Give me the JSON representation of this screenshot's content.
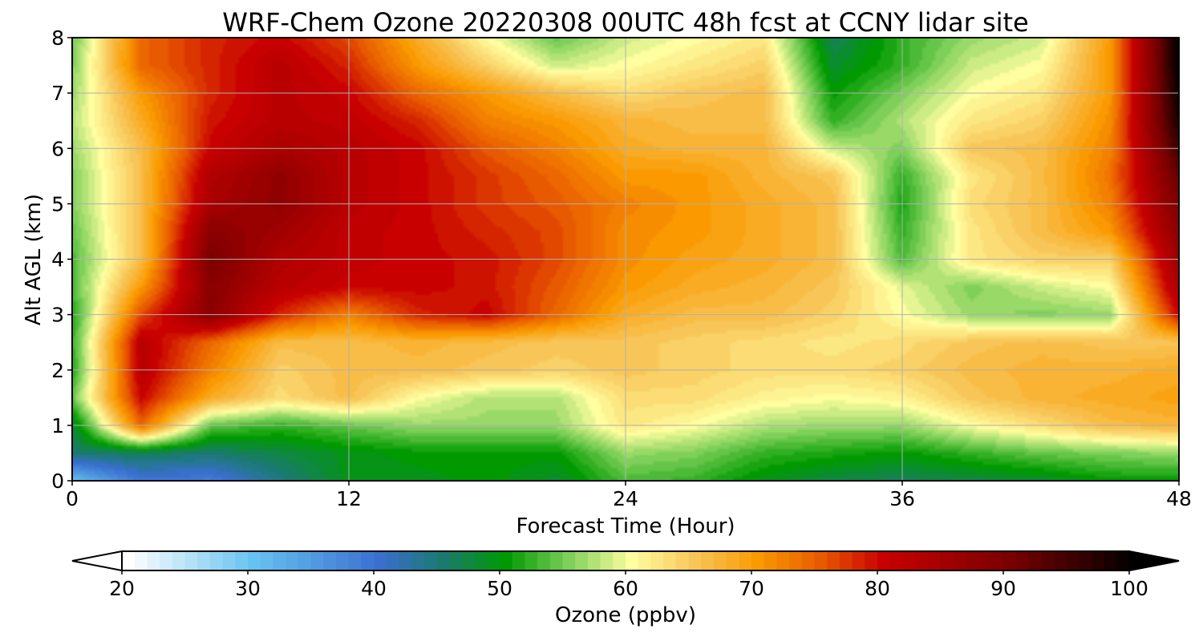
{
  "chart_data": {
    "type": "heatmap",
    "title": "WRF-Chem Ozone  20220308 00UTC 48h fcst at CCNY lidar site",
    "xlabel": "Forecast Time (Hour)",
    "ylabel": "Alt AGL (km)",
    "xlim": [
      0,
      48
    ],
    "ylim": [
      0,
      8
    ],
    "xticks": [
      0,
      12,
      24,
      36,
      48
    ],
    "xtick_labels": [
      "0",
      "12",
      "24",
      "36",
      "48"
    ],
    "yticks": [
      0,
      1,
      2,
      3,
      4,
      5,
      6,
      7,
      8
    ],
    "ytick_labels": [
      "0",
      "1",
      "2",
      "3",
      "4",
      "5",
      "6",
      "7",
      "8"
    ],
    "grid": true,
    "colorbar": {
      "label": "Ozone  (ppbv)",
      "range": [
        20,
        100
      ],
      "ticks": [
        20,
        30,
        40,
        50,
        60,
        70,
        80,
        90,
        100
      ],
      "tick_labels": [
        "20",
        "30",
        "40",
        "50",
        "60",
        "70",
        "80",
        "90",
        "100"
      ],
      "extend": "both",
      "orientation": "horizontal",
      "stops": [
        {
          "v": 20,
          "color": "#ffffff"
        },
        {
          "v": 30,
          "color": "#66c2f0"
        },
        {
          "v": 40,
          "color": "#3a6fd0"
        },
        {
          "v": 45,
          "color": "#1a7a70"
        },
        {
          "v": 50,
          "color": "#009a00"
        },
        {
          "v": 55,
          "color": "#7ed05a"
        },
        {
          "v": 60,
          "color": "#fffea0"
        },
        {
          "v": 65,
          "color": "#f8c658"
        },
        {
          "v": 70,
          "color": "#fa9a00"
        },
        {
          "v": 75,
          "color": "#e85a00"
        },
        {
          "v": 80,
          "color": "#c80000"
        },
        {
          "v": 90,
          "color": "#7a0000"
        },
        {
          "v": 100,
          "color": "#000000"
        }
      ]
    },
    "hours": [
      0,
      3,
      6,
      9,
      12,
      15,
      18,
      21,
      24,
      27,
      30,
      33,
      36,
      39,
      42,
      45,
      48
    ],
    "altitudes_km": [
      0,
      0.5,
      1,
      1.5,
      2,
      2.5,
      3,
      3.5,
      4,
      4.5,
      5,
      5.5,
      6,
      6.5,
      7,
      7.5,
      8
    ],
    "ozone_ppbv": [
      [
        30,
        39,
        38,
        44,
        49,
        49,
        50,
        48,
        53,
        52,
        49,
        47,
        46,
        47,
        48,
        50,
        50
      ],
      [
        45,
        46,
        45,
        47,
        49,
        50,
        50,
        50,
        56,
        55,
        52,
        51,
        50,
        52,
        54,
        55,
        56
      ],
      [
        47,
        74,
        54,
        52,
        54,
        56,
        56,
        56,
        62,
        60,
        57,
        56,
        56,
        60,
        63,
        66,
        67
      ],
      [
        54,
        80,
        68,
        63,
        66,
        60,
        57,
        57,
        63,
        63,
        61,
        60,
        61,
        65,
        67,
        68,
        69
      ],
      [
        51,
        82,
        72,
        64,
        66,
        66,
        65,
        64,
        65,
        64,
        63,
        63,
        64,
        66,
        67,
        67,
        68
      ],
      [
        52,
        82,
        74,
        66,
        66,
        67,
        66,
        65,
        65,
        64,
        63,
        62,
        63,
        65,
        66,
        65,
        65
      ],
      [
        51,
        76,
        88,
        78,
        72,
        78,
        80,
        74,
        68,
        66,
        66,
        64,
        60,
        56,
        55,
        56,
        80
      ],
      [
        53,
        70,
        88,
        82,
        80,
        80,
        79,
        75,
        70,
        68,
        67,
        65,
        59,
        55,
        58,
        60,
        84
      ],
      [
        53,
        66,
        90,
        83,
        81,
        80,
        79,
        76,
        71,
        69,
        68,
        66,
        53,
        62,
        64,
        64,
        86
      ],
      [
        54,
        66,
        88,
        85,
        81,
        80,
        78,
        76,
        71,
        70,
        68,
        66,
        52,
        62,
        66,
        70,
        88
      ],
      [
        55,
        66,
        84,
        87,
        82,
        80,
        77,
        75,
        72,
        70,
        68,
        66,
        51,
        63,
        66,
        72,
        90
      ],
      [
        55,
        66,
        83,
        87,
        82,
        80,
        77,
        74,
        70,
        70,
        67,
        65,
        52,
        62,
        66,
        73,
        92
      ],
      [
        56,
        66,
        80,
        84,
        82,
        80,
        75,
        72,
        68,
        67,
        67,
        58,
        55,
        65,
        66,
        72,
        95
      ],
      [
        57,
        68,
        79,
        82,
        81,
        78,
        72,
        70,
        67,
        66,
        66,
        52,
        57,
        62,
        64,
        71,
        98
      ],
      [
        56,
        70,
        78,
        82,
        80,
        74,
        70,
        66,
        63,
        65,
        66,
        50,
        55,
        60,
        62,
        70,
        99
      ],
      [
        55,
        74,
        78,
        82,
        78,
        70,
        64,
        58,
        60,
        62,
        64,
        48,
        52,
        58,
        60,
        70,
        100
      ],
      [
        54,
        74,
        78,
        80,
        76,
        68,
        60,
        54,
        58,
        60,
        62,
        46,
        52,
        56,
        58,
        70,
        100
      ]
    ]
  }
}
